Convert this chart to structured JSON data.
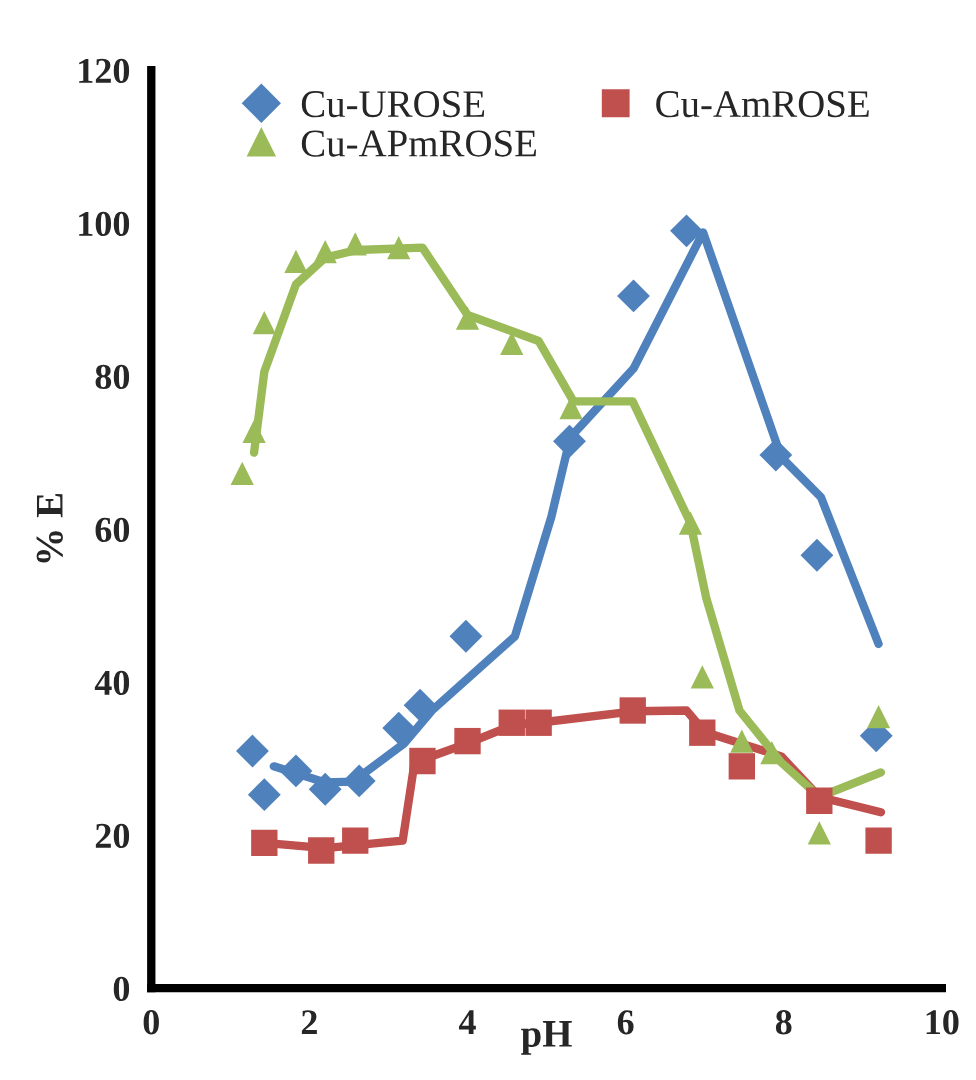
{
  "chart_data": {
    "type": "scatter",
    "xlabel": "pH",
    "ylabel": "% E",
    "xlim": [
      0,
      10
    ],
    "xticks": [
      0,
      2,
      4,
      6,
      8,
      10
    ],
    "ylim": [
      0,
      120
    ],
    "yticks": [
      0,
      20,
      40,
      60,
      80,
      100,
      120
    ],
    "grid": false,
    "legend": "top",
    "series": [
      {
        "name": "Cu-UROSE",
        "marker": "diamond",
        "color": "#4f81bd",
        "x": [
          1.28,
          1.43,
          1.83,
          2.2,
          2.63,
          3.13,
          3.4,
          3.98,
          5.29,
          6.1,
          6.77,
          7.9,
          8.42,
          9.17
        ],
        "values": [
          31,
          25.3,
          28.4,
          26,
          27.1,
          34,
          37,
          46,
          71.5,
          90.5,
          99,
          69.7,
          56.6,
          33
        ]
      },
      {
        "name": "Cu-AmROSE",
        "marker": "square",
        "color": "#c0504d",
        "x": [
          1.43,
          2.15,
          2.58,
          3.43,
          4.0,
          4.56,
          4.9,
          6.09,
          6.97,
          7.47,
          8.45,
          9.2
        ],
        "values": [
          19,
          18,
          19.3,
          29.7,
          32.3,
          34.7,
          34.7,
          36.3,
          33.4,
          29,
          24.5,
          19.3
        ]
      },
      {
        "name": "Cu-APmROSE",
        "marker": "triangle",
        "color": "#9bbb59",
        "x": [
          1.15,
          1.3,
          1.43,
          1.83,
          2.2,
          2.58,
          3.13,
          4.0,
          4.56,
          5.31,
          6.82,
          6.97,
          7.47,
          7.85,
          8.45,
          9.2
        ],
        "values": [
          67.3,
          72.8,
          87,
          95,
          96.3,
          97.3,
          96.8,
          87.6,
          84.3,
          75.9,
          60.8,
          40.7,
          32.3,
          30.8,
          20.3,
          35.5
        ]
      },
      {
        "type": "line",
        "color": "#4f81bd",
        "x": [
          1.55,
          2.2,
          2.55,
          3.2,
          3.55,
          4.6,
          5.06,
          5.3,
          6.1,
          6.98,
          7.97,
          8.47,
          9.2
        ],
        "values": [
          29,
          26.9,
          27,
          32,
          36.3,
          46,
          61.6,
          72,
          81,
          98.8,
          69.4,
          64.2,
          45
        ]
      },
      {
        "type": "line",
        "color": "#c0504d",
        "x": [
          1.43,
          2.2,
          3.18,
          3.33,
          4.0,
          4.6,
          4.9,
          6.1,
          6.77,
          7.0,
          7.97,
          8.45,
          9.23
        ],
        "values": [
          19,
          18.3,
          19.3,
          29.5,
          32,
          34.5,
          34.7,
          36.2,
          36.3,
          33.5,
          30.3,
          25,
          23
        ]
      },
      {
        "type": "line",
        "color": "#9bbb59",
        "x": [
          1.3,
          1.43,
          1.83,
          2.2,
          2.6,
          3.43,
          4.0,
          4.9,
          5.34,
          6.09,
          6.82,
          7.02,
          7.44,
          7.97,
          8.45,
          9.23
        ],
        "values": [
          70,
          80.6,
          92,
          95.5,
          96.5,
          96.8,
          88,
          84.6,
          76.7,
          76.7,
          60.8,
          51,
          36.3,
          29.5,
          25,
          28.2
        ]
      }
    ]
  }
}
